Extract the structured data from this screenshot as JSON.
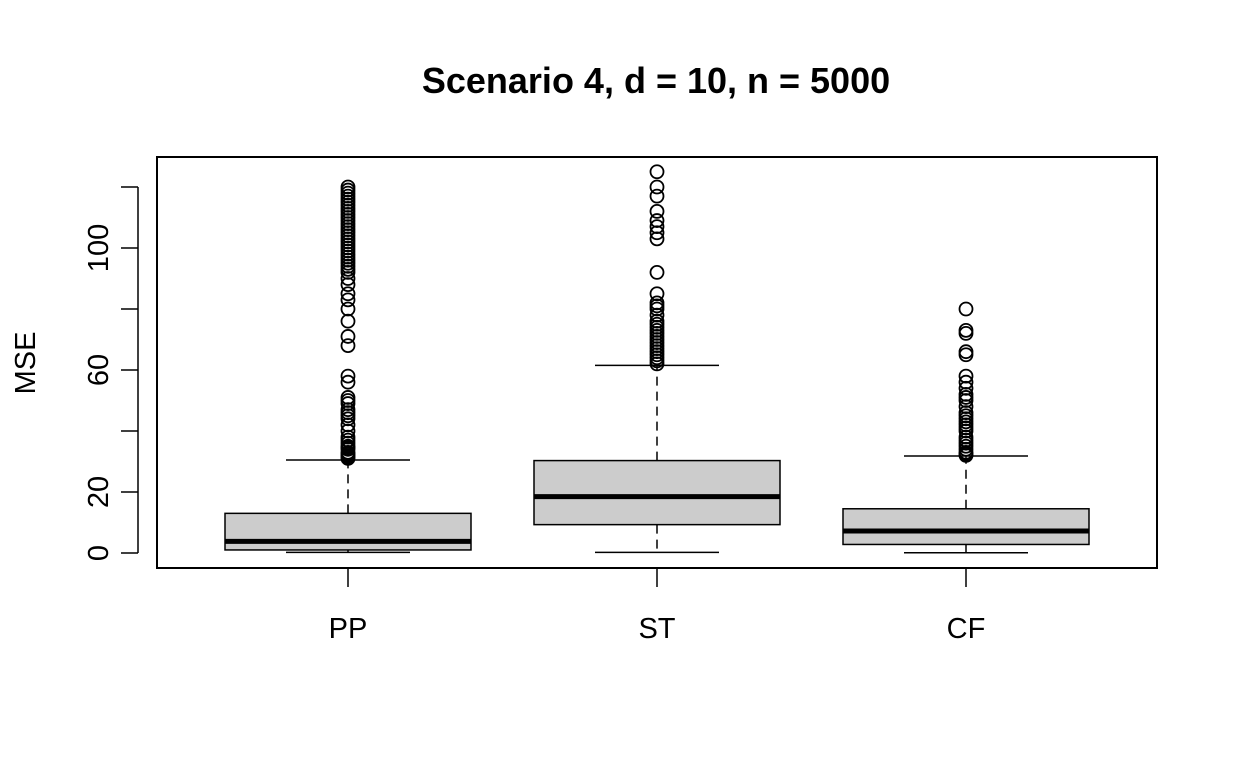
{
  "chart_data": {
    "type": "boxplot",
    "title": "Scenario 4, d = 10, n = 5000",
    "xlabel": "",
    "ylabel": "MSE",
    "ylim": [
      -5,
      130
    ],
    "yticks": [
      0,
      20,
      40,
      60,
      80,
      100,
      120
    ],
    "ytick_labels": [
      "0",
      "20",
      "",
      "60",
      "",
      "100",
      ""
    ],
    "categories": [
      "PP",
      "ST",
      "CF"
    ],
    "box_fill": "#cccccc",
    "grid": false,
    "legend": "none",
    "boxes": [
      {
        "category": "PP",
        "whisker_low": 0.2,
        "q1": 1.0,
        "median": 3.8,
        "q3": 13.0,
        "whisker_high": 30.5,
        "outliers": [
          31,
          31.5,
          32,
          32.5,
          33,
          34,
          34.5,
          35,
          36,
          37,
          38,
          40,
          42,
          44,
          45,
          46,
          47,
          49,
          50,
          51,
          56,
          58,
          68,
          71,
          76,
          80,
          83,
          85,
          88,
          90,
          92,
          93,
          94,
          95,
          96,
          97,
          98,
          99,
          100,
          101,
          102,
          103,
          104,
          105,
          106,
          107,
          108,
          109,
          110,
          111,
          112,
          113,
          114,
          115,
          116,
          117,
          118,
          119,
          120
        ]
      },
      {
        "category": "ST",
        "whisker_low": 0.2,
        "q1": 9.3,
        "median": 18.5,
        "q3": 30.3,
        "whisker_high": 61.5,
        "outliers": [
          62,
          63,
          64,
          65,
          66,
          67,
          68,
          69,
          70,
          71,
          72,
          73,
          74,
          75,
          76,
          78,
          80,
          81,
          82,
          85,
          92,
          103,
          105,
          107,
          109,
          112,
          117,
          120,
          125
        ]
      },
      {
        "category": "CF",
        "whisker_low": 0.1,
        "q1": 2.8,
        "median": 7.2,
        "q3": 14.5,
        "whisker_high": 31.8,
        "outliers": [
          32,
          32.5,
          33,
          34,
          35,
          36,
          37,
          38,
          40,
          41,
          42,
          43,
          44,
          45,
          46,
          48,
          50,
          51,
          52,
          54,
          56,
          58,
          65,
          66,
          72,
          73,
          80
        ]
      }
    ]
  }
}
